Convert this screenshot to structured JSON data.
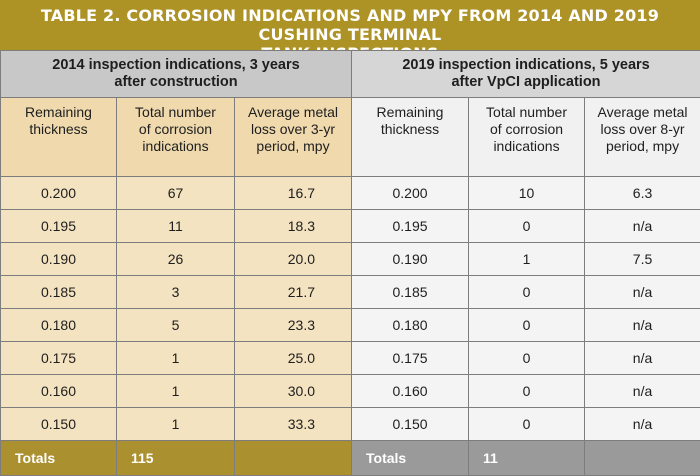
{
  "title": {
    "line1": "TABLE 2.  CORROSION INDICATIONS AND MPY FROM 2014 AND 2019 CUSHING TERMINAL",
    "line2": "TANK INSPECTIONS"
  },
  "groups": {
    "left": {
      "line1": "2014 inspection indications, 3 years",
      "line2": "after construction"
    },
    "right": {
      "line1": "2019 inspection indications, 5 years",
      "line2": "after VpCI application"
    }
  },
  "columns": {
    "left": [
      [
        "Remaining",
        "thickness"
      ],
      [
        "Total number",
        "of corrosion",
        "indications"
      ],
      [
        "Average metal",
        "loss over 3-yr",
        "period, mpy"
      ]
    ],
    "right": [
      [
        "Remaining",
        "thickness"
      ],
      [
        "Total number",
        "of corrosion",
        "indications"
      ],
      [
        "Average metal",
        "loss over 8-yr",
        "period, mpy"
      ]
    ]
  },
  "rows": [
    {
      "l": [
        "0.200",
        "67",
        "16.7"
      ],
      "r": [
        "0.200",
        "10",
        "6.3"
      ]
    },
    {
      "l": [
        "0.195",
        "11",
        "18.3"
      ],
      "r": [
        "0.195",
        "0",
        "n/a"
      ]
    },
    {
      "l": [
        "0.190",
        "26",
        "20.0"
      ],
      "r": [
        "0.190",
        "1",
        "7.5"
      ]
    },
    {
      "l": [
        "0.185",
        "3",
        "21.7"
      ],
      "r": [
        "0.185",
        "0",
        "n/a"
      ]
    },
    {
      "l": [
        "0.180",
        "5",
        "23.3"
      ],
      "r": [
        "0.180",
        "0",
        "n/a"
      ]
    },
    {
      "l": [
        "0.175",
        "1",
        "25.0"
      ],
      "r": [
        "0.175",
        "0",
        "n/a"
      ]
    },
    {
      "l": [
        "0.160",
        "1",
        "30.0"
      ],
      "r": [
        "0.160",
        "0",
        "n/a"
      ]
    },
    {
      "l": [
        "0.150",
        "1",
        "33.3"
      ],
      "r": [
        "0.150",
        "0",
        "n/a"
      ]
    }
  ],
  "totals": {
    "left_label": "Totals",
    "left_value": "115",
    "right_label": "Totals",
    "right_value": "11"
  },
  "colors": {
    "title_bg": "#ad9226",
    "left_header_bg": "#efd9ad",
    "left_body_bg": "#f4e3c0",
    "totals_bg": "#a78e34",
    "right_totals_bg": "#9a9a9a"
  }
}
